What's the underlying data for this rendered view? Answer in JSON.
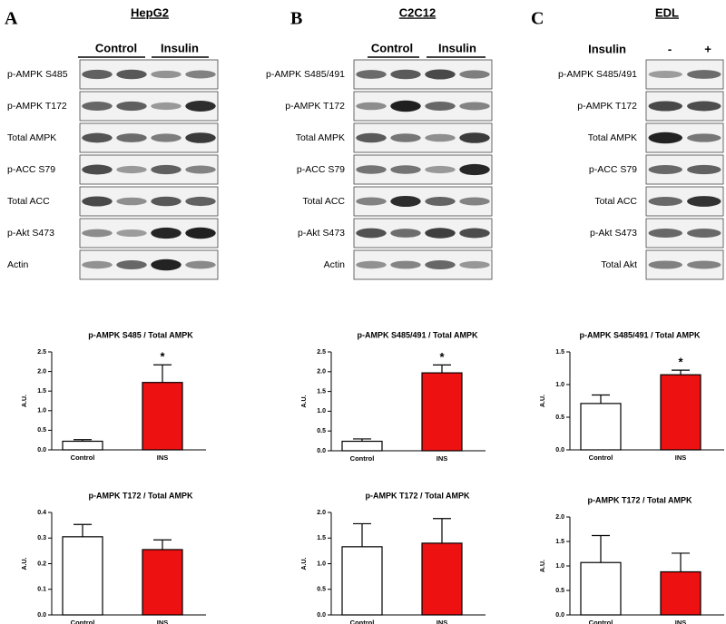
{
  "panels": [
    {
      "letter": "A",
      "title": "HepG2",
      "header": [
        "Control",
        "Insulin"
      ],
      "blots": [
        "p-AMPK S485",
        "p-AMPK T172",
        "Total AMPK",
        "p-ACC S79",
        "Total ACC",
        "p-Akt S473",
        "Actin"
      ]
    },
    {
      "letter": "B",
      "title": "C2C12",
      "header": [
        "Control",
        "Insulin"
      ],
      "blots": [
        "p-AMPK S485/491",
        "p-AMPK T172",
        "Total AMPK",
        "p-ACC S79",
        "Total ACC",
        "p-Akt S473",
        "Actin"
      ]
    },
    {
      "letter": "C",
      "title": "EDL",
      "header": [
        "Insulin",
        "-",
        "+"
      ],
      "blots": [
        "p-AMPK S485/491",
        "p-AMPK T172",
        "Total AMPK",
        "p-ACC S79",
        "Total ACC",
        "p-Akt S473",
        "Total Akt"
      ]
    }
  ],
  "chart_data": [
    {
      "type": "bar",
      "title": "p-AMPK S485 / Total AMPK",
      "y_label": "A.U.",
      "categories": [
        "Control",
        "INS"
      ],
      "values": [
        0.22,
        1.72
      ],
      "errors": [
        0.04,
        0.45
      ],
      "colors": [
        "#ffffff",
        "#ee1111"
      ],
      "annotation": "*",
      "ylim": [
        0,
        2.5
      ],
      "yticks": [
        {
          "value": 0,
          "label": "0.0"
        },
        0.5,
        {
          "value": 1,
          "label": "1.0"
        },
        1.5,
        {
          "value": 2,
          "label": "2.0"
        },
        2.5
      ]
    },
    {
      "type": "bar",
      "title": "p-AMPK T172 / Total AMPK",
      "y_label": "A.U.",
      "categories": [
        "Control",
        "INS"
      ],
      "values": [
        0.305,
        0.255
      ],
      "errors": [
        0.048,
        0.038
      ],
      "colors": [
        "#ffffff",
        "#ee1111"
      ],
      "ylim": [
        0,
        0.4
      ],
      "yticks": [
        {
          "value": 0,
          "label": "0.0"
        },
        0.1,
        0.2,
        0.3,
        0.4
      ]
    },
    {
      "type": "bar",
      "title": "p-AMPK S485/491 / Total AMPK",
      "y_label": "A.U.",
      "categories": [
        "Control",
        "INS"
      ],
      "values": [
        0.24,
        1.97
      ],
      "errors": [
        0.06,
        0.2
      ],
      "colors": [
        "#ffffff",
        "#ee1111"
      ],
      "annotation": "*",
      "ylim": [
        0,
        2.5
      ],
      "yticks": [
        {
          "value": 0,
          "label": "0.0"
        },
        0.5,
        {
          "value": 1,
          "label": "1.0"
        },
        1.5,
        {
          "value": 2,
          "label": "2.0"
        },
        2.5
      ]
    },
    {
      "type": "bar",
      "title": "p-AMPK T172 / Total AMPK",
      "y_label": "A.U.",
      "categories": [
        "Control",
        "INS"
      ],
      "values": [
        1.33,
        1.4
      ],
      "errors": [
        0.45,
        0.48
      ],
      "colors": [
        "#ffffff",
        "#ee1111"
      ],
      "ylim": [
        0,
        2
      ],
      "yticks": [
        {
          "value": 0,
          "label": "0.0"
        },
        0.5,
        {
          "value": 1,
          "label": "1.0"
        },
        1.5,
        {
          "value": 2,
          "label": "2.0"
        }
      ]
    },
    {
      "type": "bar",
      "title": "p-AMPK S485/491 / Total AMPK",
      "y_label": "A.U.",
      "categories": [
        "Control",
        "INS"
      ],
      "values": [
        0.71,
        1.15
      ],
      "errors": [
        0.13,
        0.07
      ],
      "colors": [
        "#ffffff",
        "#ee1111"
      ],
      "annotation": "*",
      "ylim": [
        0,
        1.5
      ],
      "yticks": [
        {
          "value": 0,
          "label": "0.0"
        },
        0.5,
        {
          "value": 1,
          "label": "1.0"
        },
        1.5
      ]
    },
    {
      "type": "bar",
      "title": "p-AMPK T172 / Total AMPK",
      "y_label": "A.U.",
      "categories": [
        "Control",
        "INS"
      ],
      "values": [
        1.07,
        0.88
      ],
      "errors": [
        0.55,
        0.38
      ],
      "colors": [
        "#ffffff",
        "#ee1111"
      ],
      "ylim": [
        0,
        2
      ],
      "yticks": [
        {
          "value": 0,
          "label": "0.0"
        },
        0.5,
        {
          "value": 1,
          "label": "1.0"
        },
        1.5,
        {
          "value": 2,
          "label": "2.0"
        }
      ]
    }
  ]
}
